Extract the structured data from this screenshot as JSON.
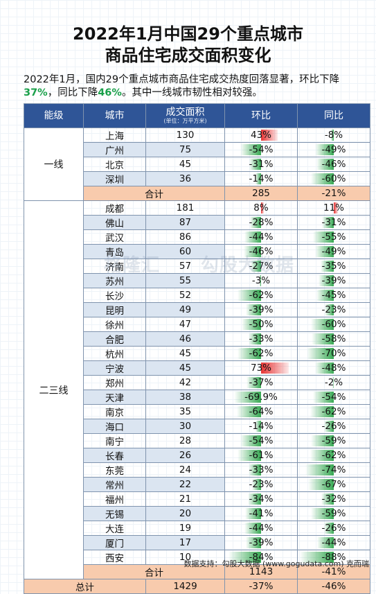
{
  "title_line1": "2022年1月中国29个重点城市",
  "title_line2": "商品住宅成交面积变化",
  "intro": {
    "p1": "2022年1月，国内29个重点城市商品住宅成交热度回落显著，环比下降",
    "mom": "37%",
    "p2": "，同比下降",
    "yoy": "46%",
    "p3": "。其中一线城市韧性相对较强。"
  },
  "headers": {
    "tier": "能级",
    "city": "城市",
    "area": "成交面积",
    "area_unit": "(单位：万平方米)",
    "mom": "环比",
    "yoy": "同比"
  },
  "tier1_label": "一线",
  "tier23_label": "二三线",
  "tier1_rows": [
    {
      "city": "上海",
      "area": "130",
      "mom": "43%",
      "mom_v": 43,
      "yoy": "-8%",
      "yoy_v": -8
    },
    {
      "city": "广州",
      "area": "75",
      "mom": "-54%",
      "mom_v": -54,
      "yoy": "-49%",
      "yoy_v": -49
    },
    {
      "city": "北京",
      "area": "45",
      "mom": "-31%",
      "mom_v": -31,
      "yoy": "-46%",
      "yoy_v": -46
    },
    {
      "city": "深圳",
      "area": "36",
      "mom": "-14%",
      "mom_v": -14,
      "yoy": "-60%",
      "yoy_v": -60
    }
  ],
  "tier1_total": {
    "label": "合计",
    "area": "285",
    "mom": "-21%",
    "yoy": "-38%"
  },
  "tier23_rows": [
    {
      "city": "成都",
      "area": "181",
      "mom": "8%",
      "mom_v": 8,
      "yoy": "11%",
      "yoy_v": 11
    },
    {
      "city": "佛山",
      "area": "87",
      "mom": "-28%",
      "mom_v": -28,
      "yoy": "-31%",
      "yoy_v": -31
    },
    {
      "city": "武汉",
      "area": "86",
      "mom": "-44%",
      "mom_v": -44,
      "yoy": "-55%",
      "yoy_v": -55
    },
    {
      "city": "青岛",
      "area": "60",
      "mom": "-46%",
      "mom_v": -46,
      "yoy": "-49%",
      "yoy_v": -49
    },
    {
      "city": "济南",
      "area": "57",
      "mom": "-27%",
      "mom_v": -27,
      "yoy": "-35%",
      "yoy_v": -35
    },
    {
      "city": "苏州",
      "area": "55",
      "mom": "-3%",
      "mom_v": -3,
      "yoy": "-39%",
      "yoy_v": -39
    },
    {
      "city": "长沙",
      "area": "52",
      "mom": "-62%",
      "mom_v": -62,
      "yoy": "-45%",
      "yoy_v": -45
    },
    {
      "city": "昆明",
      "area": "49",
      "mom": "-39%",
      "mom_v": -39,
      "yoy": "-23%",
      "yoy_v": -23
    },
    {
      "city": "徐州",
      "area": "47",
      "mom": "-50%",
      "mom_v": -50,
      "yoy": "-60%",
      "yoy_v": -60
    },
    {
      "city": "合肥",
      "area": "46",
      "mom": "-33%",
      "mom_v": -33,
      "yoy": "-58%",
      "yoy_v": -58
    },
    {
      "city": "杭州",
      "area": "45",
      "mom": "-62%",
      "mom_v": -62,
      "yoy": "-70%",
      "yoy_v": -70
    },
    {
      "city": "宁波",
      "area": "45",
      "mom": "73%",
      "mom_v": 73,
      "yoy": "-48%",
      "yoy_v": -48
    },
    {
      "city": "郑州",
      "area": "42",
      "mom": "-37%",
      "mom_v": -37,
      "yoy": "-2%",
      "yoy_v": -2
    },
    {
      "city": "天津",
      "area": "38",
      "mom": "-69.9%",
      "mom_v": -69.9,
      "yoy": "-54%",
      "yoy_v": -54
    },
    {
      "city": "南京",
      "area": "35",
      "mom": "-64%",
      "mom_v": -64,
      "yoy": "-62%",
      "yoy_v": -62
    },
    {
      "city": "海口",
      "area": "30",
      "mom": "-14%",
      "mom_v": -14,
      "yoy": "-26%",
      "yoy_v": -26
    },
    {
      "city": "南宁",
      "area": "28",
      "mom": "-54%",
      "mom_v": -54,
      "yoy": "-59%",
      "yoy_v": -59
    },
    {
      "city": "长春",
      "area": "26",
      "mom": "-61%",
      "mom_v": -61,
      "yoy": "-62%",
      "yoy_v": -62
    },
    {
      "city": "东莞",
      "area": "24",
      "mom": "-33%",
      "mom_v": -33,
      "yoy": "-74%",
      "yoy_v": -74
    },
    {
      "city": "常州",
      "area": "22",
      "mom": "-23%",
      "mom_v": -23,
      "yoy": "-67%",
      "yoy_v": -67
    },
    {
      "city": "福州",
      "area": "21",
      "mom": "-34%",
      "mom_v": -34,
      "yoy": "-32%",
      "yoy_v": -32
    },
    {
      "city": "无锡",
      "area": "20",
      "mom": "-41%",
      "mom_v": -41,
      "yoy": "-59%",
      "yoy_v": -59
    },
    {
      "city": "大连",
      "area": "19",
      "mom": "-44%",
      "mom_v": -44,
      "yoy": "-26%",
      "yoy_v": -26
    },
    {
      "city": "厦门",
      "area": "17",
      "mom": "-39%",
      "mom_v": -39,
      "yoy": "-44%",
      "yoy_v": -44
    },
    {
      "city": "西安",
      "area": "10",
      "mom": "-84%",
      "mom_v": -84,
      "yoy": "-88%",
      "yoy_v": -88
    }
  ],
  "tier23_total": {
    "label": "合计",
    "area": "1143",
    "mom": "-41%",
    "yoy": "-47%"
  },
  "grand_total": {
    "label": "总计",
    "area": "1429",
    "mom": "-37%",
    "yoy": "-46%"
  },
  "colors": {
    "header": "#2f5597",
    "alt_row": "#dbe5f1",
    "total_row": "#f8cbad",
    "neg_bar": "#22a040",
    "pos_bar": "#e62828",
    "highlight": "#1aa04a"
  },
  "watermark_left": "格隆汇",
  "watermark_right": "勾股大数据",
  "source": "数据支持：勾股大数据 (www.gogudata.com) 克而瑞"
}
